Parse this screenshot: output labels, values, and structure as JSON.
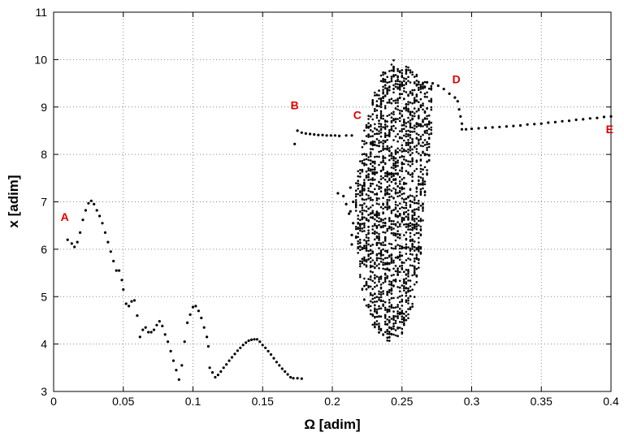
{
  "chart_data": {
    "type": "scatter",
    "title": "",
    "xlabel": "Ω [adim]",
    "ylabel": "x [adim]",
    "xlim": [
      0,
      0.4
    ],
    "ylim": [
      3,
      11
    ],
    "xticks": [
      "0",
      "0.05",
      "0.1",
      "0.15",
      "0.2",
      "0.25",
      "0.3",
      "0.35",
      "0.4"
    ],
    "yticks": [
      "3",
      "4",
      "5",
      "6",
      "7",
      "8",
      "9",
      "10",
      "11"
    ],
    "grid": true,
    "marker_color": "#000000",
    "annotation_color": "#e00000",
    "annotations": [
      {
        "label": "A",
        "x": 0.008,
        "y": 6.6
      },
      {
        "label": "B",
        "x": 0.173,
        "y": 8.95
      },
      {
        "label": "C",
        "x": 0.218,
        "y": 8.75
      },
      {
        "label": "D",
        "x": 0.289,
        "y": 9.5
      },
      {
        "label": "E",
        "x": 0.399,
        "y": 8.45
      }
    ],
    "series": [
      {
        "points": [
          [
            0.01,
            6.2
          ],
          [
            0.013,
            6.12
          ],
          [
            0.015,
            6.05
          ],
          [
            0.017,
            6.15
          ],
          [
            0.019,
            6.35
          ],
          [
            0.021,
            6.62
          ],
          [
            0.023,
            6.82
          ],
          [
            0.025,
            6.97
          ],
          [
            0.027,
            7.02
          ],
          [
            0.029,
            6.95
          ],
          [
            0.031,
            6.82
          ],
          [
            0.033,
            6.7
          ],
          [
            0.035,
            6.55
          ],
          [
            0.037,
            6.35
          ],
          [
            0.039,
            6.15
          ],
          [
            0.041,
            5.95
          ],
          [
            0.043,
            5.75
          ],
          [
            0.045,
            5.55
          ],
          [
            0.047,
            5.55
          ],
          [
            0.049,
            5.35
          ],
          [
            0.05,
            5.15
          ],
          [
            0.052,
            4.85
          ],
          [
            0.054,
            4.8
          ],
          [
            0.056,
            4.9
          ],
          [
            0.058,
            4.92
          ],
          [
            0.06,
            4.6
          ],
          [
            0.062,
            4.15
          ],
          [
            0.064,
            4.3
          ],
          [
            0.066,
            4.35
          ],
          [
            0.068,
            4.25
          ],
          [
            0.07,
            4.25
          ],
          [
            0.072,
            4.3
          ],
          [
            0.074,
            4.4
          ],
          [
            0.076,
            4.48
          ],
          [
            0.078,
            4.38
          ],
          [
            0.08,
            4.2
          ],
          [
            0.082,
            4.05
          ],
          [
            0.084,
            3.85
          ],
          [
            0.086,
            3.65
          ],
          [
            0.088,
            3.45
          ],
          [
            0.09,
            3.25
          ],
          [
            0.092,
            3.55
          ],
          [
            0.094,
            4.05
          ],
          [
            0.096,
            4.45
          ],
          [
            0.098,
            4.62
          ],
          [
            0.1,
            4.78
          ],
          [
            0.102,
            4.8
          ],
          [
            0.104,
            4.7
          ],
          [
            0.106,
            4.55
          ],
          [
            0.108,
            4.35
          ],
          [
            0.11,
            4.15
          ],
          [
            0.111,
            3.95
          ],
          [
            0.112,
            3.5
          ],
          [
            0.114,
            3.4
          ],
          [
            0.116,
            3.3
          ],
          [
            0.118,
            3.35
          ],
          [
            0.12,
            3.42
          ],
          [
            0.122,
            3.5
          ],
          [
            0.124,
            3.57
          ],
          [
            0.126,
            3.65
          ],
          [
            0.128,
            3.72
          ],
          [
            0.13,
            3.79
          ],
          [
            0.132,
            3.86
          ],
          [
            0.134,
            3.92
          ],
          [
            0.136,
            3.98
          ],
          [
            0.138,
            4.03
          ],
          [
            0.14,
            4.07
          ],
          [
            0.142,
            4.09
          ],
          [
            0.144,
            4.1
          ],
          [
            0.146,
            4.1
          ],
          [
            0.148,
            4.05
          ],
          [
            0.15,
            3.98
          ],
          [
            0.152,
            3.92
          ],
          [
            0.154,
            3.85
          ],
          [
            0.156,
            3.78
          ],
          [
            0.158,
            3.7
          ],
          [
            0.16,
            3.62
          ],
          [
            0.162,
            3.55
          ],
          [
            0.164,
            3.48
          ],
          [
            0.166,
            3.42
          ],
          [
            0.168,
            3.36
          ],
          [
            0.17,
            3.3
          ],
          [
            0.172,
            3.28
          ],
          [
            0.175,
            3.28
          ],
          [
            0.178,
            3.27
          ],
          [
            0.173,
            8.22
          ],
          [
            0.175,
            8.5
          ],
          [
            0.178,
            8.46
          ],
          [
            0.181,
            8.44
          ],
          [
            0.184,
            8.43
          ],
          [
            0.187,
            8.42
          ],
          [
            0.19,
            8.41
          ],
          [
            0.193,
            8.41
          ],
          [
            0.196,
            8.4
          ],
          [
            0.199,
            8.4
          ],
          [
            0.202,
            8.4
          ],
          [
            0.205,
            8.39
          ],
          [
            0.21,
            8.4
          ],
          [
            0.214,
            8.4
          ],
          [
            0.204,
            7.18
          ],
          [
            0.208,
            7.12
          ],
          [
            0.21,
            6.95
          ],
          [
            0.212,
            6.75
          ],
          [
            0.213,
            6.8
          ],
          [
            0.213,
            7.3
          ],
          [
            0.214,
            6.3
          ],
          [
            0.214,
            6.1
          ],
          [
            0.215,
            7.0
          ],
          [
            0.215,
            6.55
          ],
          [
            0.293,
            8.53
          ],
          [
            0.296,
            8.53
          ],
          [
            0.3,
            8.54
          ],
          [
            0.305,
            8.55
          ],
          [
            0.31,
            8.56
          ],
          [
            0.315,
            8.57
          ],
          [
            0.32,
            8.58
          ],
          [
            0.325,
            8.59
          ],
          [
            0.33,
            8.6
          ],
          [
            0.335,
            8.61
          ],
          [
            0.34,
            8.63
          ],
          [
            0.345,
            8.64
          ],
          [
            0.35,
            8.65
          ],
          [
            0.355,
            8.67
          ],
          [
            0.36,
            8.68
          ],
          [
            0.365,
            8.7
          ],
          [
            0.37,
            8.71
          ],
          [
            0.375,
            8.73
          ],
          [
            0.38,
            8.74
          ],
          [
            0.385,
            8.76
          ],
          [
            0.39,
            8.77
          ],
          [
            0.395,
            8.79
          ],
          [
            0.4,
            8.8
          ],
          [
            0.268,
            9.52
          ],
          [
            0.272,
            9.5
          ],
          [
            0.276,
            9.45
          ],
          [
            0.28,
            9.38
          ],
          [
            0.284,
            9.28
          ],
          [
            0.288,
            9.2
          ],
          [
            0.29,
            9.12
          ],
          [
            0.291,
            8.95
          ],
          [
            0.292,
            8.8
          ],
          [
            0.293,
            8.65
          ]
        ]
      }
    ],
    "cloud": {
      "description_only_for_rendering": false,
      "x_start": 0.217,
      "x_end": 0.272,
      "x_step": 0.0015,
      "lower": [
        [
          0.217,
          6.0
        ],
        [
          0.222,
          5.0
        ],
        [
          0.23,
          4.3
        ],
        [
          0.24,
          4.05
        ],
        [
          0.25,
          4.2
        ],
        [
          0.258,
          4.8
        ],
        [
          0.263,
          5.7
        ],
        [
          0.267,
          7.3
        ],
        [
          0.272,
          8.4
        ]
      ],
      "upper": [
        [
          0.217,
          7.4
        ],
        [
          0.222,
          8.4
        ],
        [
          0.23,
          9.3
        ],
        [
          0.24,
          10.05
        ],
        [
          0.25,
          9.95
        ],
        [
          0.258,
          9.75
        ],
        [
          0.263,
          9.65
        ],
        [
          0.267,
          9.55
        ],
        [
          0.272,
          9.45
        ]
      ]
    }
  }
}
